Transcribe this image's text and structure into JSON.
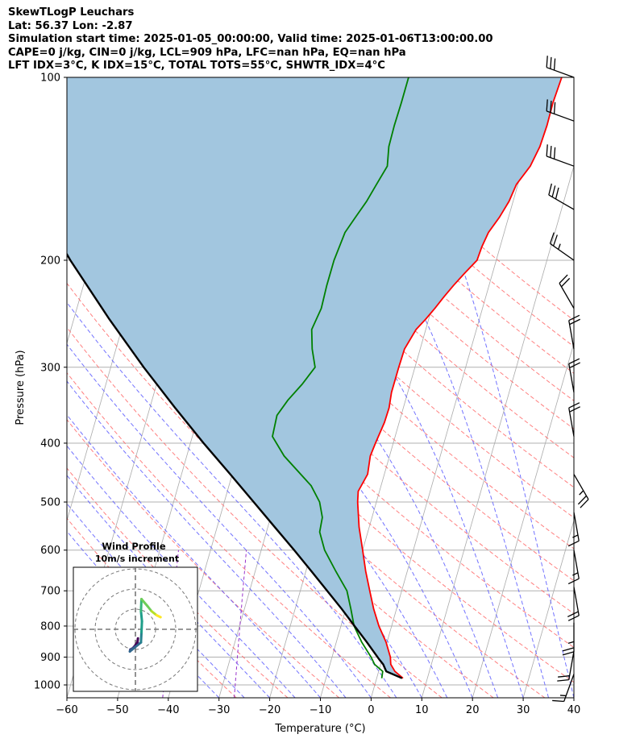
{
  "header": {
    "line1": "SkewTLogP Leuchars",
    "line2": "Lat: 56.37   Lon: -2.87",
    "line3": "Simulation start time: 2025-01-05_00:00:00, Valid time: 2025-01-06T13:00:00.00",
    "line4": "CAPE=0 j/kg, CIN=0 j/kg, LCL=909 hPa, LFC=nan hPa, EQ=nan hPa",
    "line5": "LFT IDX=3$^\\circ$C, K IDX=15$^\\circ$C, TOTAL TOTS=55$^\\circ$C, SHWTR_IDX=4$^\\circ$C"
  },
  "colors": {
    "temperature": "#ff0000",
    "dewpoint": "#008000",
    "parcel": "#000000",
    "cape_fill": "#a2c6df",
    "isotherm": "#aaaaaa",
    "dry_adiabat": "#ff6060",
    "moist_adiabat": "#5a5aff",
    "mixing_ratio": "#9933cc",
    "isobar": "#b0b0b0"
  },
  "chart_data": [
    {
      "type": "line",
      "chart": "skew-t log-p",
      "xlabel": "Temperature ($^\\circ$C)",
      "ylabel": "Pressure (hPa)",
      "xlim": [
        -60,
        40
      ],
      "ylim": [
        1050,
        100
      ],
      "y_scale": "log",
      "xticks": [
        -60,
        -50,
        -40,
        -30,
        -20,
        -10,
        0,
        10,
        20,
        30,
        40
      ],
      "yticks": [
        1000,
        900,
        800,
        700,
        600,
        500,
        400,
        300,
        200,
        100
      ],
      "grid": true,
      "series": [
        {
          "role": "temperature",
          "pressure": [
            975,
            950,
            925,
            900,
            850,
            800,
            750,
            700,
            650,
            600,
            550,
            500,
            480,
            450,
            420,
            400,
            370,
            350,
            330,
            300,
            280,
            260,
            250,
            240,
            230,
            220,
            210,
            200,
            190,
            180,
            170,
            160,
            150,
            140,
            130,
            120,
            110,
            100
          ],
          "values": [
            5.2,
            3.2,
            2.0,
            1.5,
            -0.2,
            -2.5,
            -4.5,
            -6.3,
            -8.2,
            -10.0,
            -12.0,
            -13.7,
            -14.2,
            -13.3,
            -13.8,
            -13.5,
            -12.9,
            -12.8,
            -13.2,
            -13.2,
            -13.1,
            -11.9,
            -10.6,
            -9.4,
            -8.3,
            -7.0,
            -5.5,
            -3.8,
            -3.6,
            -3.1,
            -1.8,
            -0.8,
            -0.3,
            1.4,
            2.2,
            2.4,
            2.3,
            2.6
          ]
        },
        {
          "role": "dewpoint",
          "pressure": [
            975,
            950,
            925,
            900,
            850,
            800,
            750,
            700,
            650,
            600,
            560,
            530,
            500,
            470,
            420,
            390,
            360,
            340,
            320,
            300,
            280,
            260,
            240,
            220,
            200,
            180,
            170,
            160,
            150,
            140,
            130,
            120,
            110,
            100
          ],
          "values": [
            1.0,
            0.8,
            -1.2,
            -2.3,
            -5.0,
            -7.4,
            -9.0,
            -10.8,
            -14.1,
            -17.5,
            -19.5,
            -19.8,
            -21.2,
            -23.8,
            -30.8,
            -34.2,
            -34.5,
            -33.2,
            -31.3,
            -29.7,
            -31.3,
            -32.5,
            -31.8,
            -32.0,
            -32.0,
            -31.4,
            -30.2,
            -28.9,
            -27.9,
            -26.8,
            -27.6,
            -27.7,
            -27.6,
            -27.6
          ]
        },
        {
          "role": "parcel",
          "pressure": [
            975,
            950,
            925,
            909,
            850,
            800,
            750,
            700,
            650,
            600,
            550,
            500,
            450,
            400,
            350,
            300,
            250,
            200,
            150,
            120,
            100
          ],
          "values": [
            5.0,
            1.5,
            0.5,
            -0.5,
            -4.0,
            -7.3,
            -10.8,
            -14.7,
            -18.9,
            -23.5,
            -28.6,
            -34.2,
            -40.4,
            -47.4,
            -55.0,
            -63.5,
            -73.0,
            -84.0,
            -97.0,
            -107.0,
            -115.0
          ]
        }
      ],
      "wind_barbs": {
        "pressure": [
          100,
          118,
          140,
          165,
          200,
          240,
          280,
          330,
          390,
          450,
          520,
          600,
          690,
          790,
          880,
          960
        ],
        "speed_kt": [
          30,
          30,
          30,
          30,
          25,
          20,
          20,
          20,
          20,
          25,
          15,
          15,
          20,
          25,
          20,
          15
        ],
        "direction_deg": [
          290,
          290,
          290,
          300,
          305,
          330,
          350,
          350,
          350,
          150,
          170,
          170,
          170,
          180,
          190,
          200
        ]
      }
    },
    {
      "type": "line",
      "chart": "hodograph",
      "title": "Wind Profile",
      "subtitle": "10m/s increment",
      "ring_increment_ms": 10,
      "u": [
        2.5,
        2.0,
        -1.0,
        -3.0,
        -5.0,
        -5.5,
        5.5,
        6.0,
        6.5,
        5.5,
        6.0,
        12.0,
        16.0,
        21.0,
        25.0
      ],
      "v": [
        -9.0,
        -13.0,
        -17.0,
        -19.0,
        -20.0,
        -22.0,
        -13.0,
        -3.0,
        8.0,
        18.0,
        30.0,
        23.0,
        18.0,
        14.0,
        12.0
      ]
    }
  ]
}
